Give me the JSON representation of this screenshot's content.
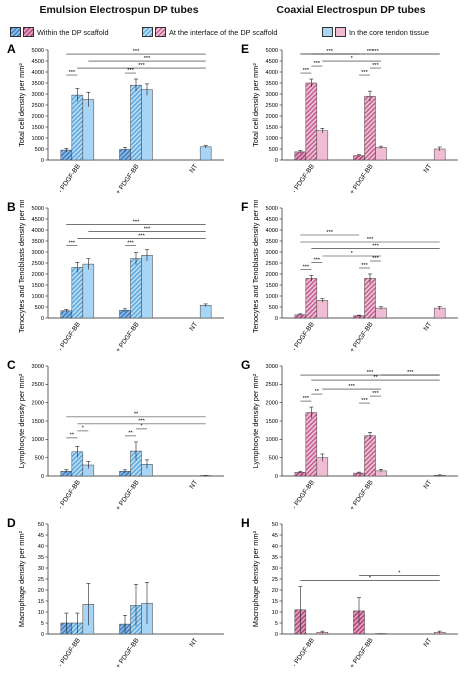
{
  "titles": {
    "left": "Emulsion Electrospun DP tubes",
    "right": "Coaxial Electrospun DP tubes"
  },
  "legend": [
    {
      "label": "Within the DP scaffold",
      "color": "#3b7fc4",
      "icon": "hatched-dark-swatch"
    },
    {
      "label": "At the interface of the DP scaffold",
      "color": "#c4608f",
      "icon": "hatched-mid-swatch"
    },
    {
      "label": "In the core tendon tissue",
      "color": "#a8d4f5",
      "icon": "light-swatch"
    }
  ],
  "chart_data": [
    {
      "panel": "A",
      "type": "bar",
      "ylabel": "Total cell density per mm²",
      "categories": [
        "- PDGF-BB",
        "+ PDGF-BB",
        "NT"
      ],
      "ylim": [
        0,
        5000
      ],
      "yticks": [
        0,
        500,
        1000,
        1500,
        2000,
        2500,
        3000,
        3500,
        4000,
        4500,
        5000
      ],
      "palette": "blue",
      "series": [
        {
          "name": "Within the DP scaffold",
          "values": [
            450,
            480,
            null
          ],
          "errors": [
            80,
            90,
            null
          ]
        },
        {
          "name": "At the interface of the DP scaffold",
          "values": [
            2950,
            3400,
            null
          ],
          "errors": [
            300,
            280,
            null
          ]
        },
        {
          "name": "In the core tendon tissue",
          "values": [
            2750,
            3200,
            600
          ],
          "errors": [
            330,
            260,
            60
          ]
        }
      ],
      "brackets": [
        "***",
        "***",
        "***",
        "***",
        "***"
      ]
    },
    {
      "panel": "B",
      "type": "bar",
      "ylabel": "Tenocytes and Tenoblasts density per mm²",
      "categories": [
        "- PDGF-BB",
        "+ PDGF-BB",
        "NT"
      ],
      "ylim": [
        0,
        5000
      ],
      "yticks": [
        0,
        500,
        1000,
        1500,
        2000,
        2500,
        3000,
        3500,
        4000,
        4500,
        5000
      ],
      "palette": "blue",
      "series": [
        {
          "name": "Within the DP scaffold",
          "values": [
            330,
            350,
            null
          ],
          "errors": [
            60,
            70,
            null
          ]
        },
        {
          "name": "At the interface of the DP scaffold",
          "values": [
            2300,
            2700,
            null
          ],
          "errors": [
            230,
            280,
            null
          ]
        },
        {
          "name": "In the core tendon tissue",
          "values": [
            2450,
            2850,
            580
          ],
          "errors": [
            250,
            260,
            60
          ]
        }
      ],
      "brackets": [
        "***",
        "***",
        "***",
        "***",
        "***"
      ]
    },
    {
      "panel": "C",
      "type": "bar",
      "ylabel": "Lymphocyte density per mm²",
      "categories": [
        "- PDGF-BB",
        "+ PDGF-BB",
        "NT"
      ],
      "ylim": [
        0,
        3000
      ],
      "yticks": [
        0,
        500,
        1000,
        1500,
        2000,
        2500,
        3000
      ],
      "palette": "blue",
      "series": [
        {
          "name": "Within the DP scaffold",
          "values": [
            130,
            130,
            null
          ],
          "errors": [
            40,
            40,
            null
          ]
        },
        {
          "name": "At the interface of the DP scaffold",
          "values": [
            660,
            680,
            null
          ],
          "errors": [
            150,
            250,
            null
          ]
        },
        {
          "name": "In the core tendon tissue",
          "values": [
            300,
            320,
            10
          ],
          "errors": [
            100,
            120,
            5
          ]
        }
      ],
      "brackets": [
        "**",
        "*",
        "**",
        "*",
        "***",
        "**"
      ]
    },
    {
      "panel": "D",
      "type": "bar",
      "ylabel": "Macrophage density per mm²",
      "categories": [
        "- PDGF-BB",
        "+ PDGF-BB",
        "NT"
      ],
      "ylim": [
        0,
        50
      ],
      "yticks": [
        0,
        5,
        10,
        15,
        20,
        25,
        30,
        35,
        40,
        45,
        50
      ],
      "palette": "blue",
      "series": [
        {
          "name": "Within the DP scaffold",
          "values": [
            5,
            4.5,
            null
          ],
          "errors": [
            4.5,
            4,
            null
          ]
        },
        {
          "name": "At the interface of the DP scaffold",
          "values": [
            5,
            13,
            null
          ],
          "errors": [
            4.5,
            9.5,
            null
          ]
        },
        {
          "name": "In the core tendon tissue",
          "values": [
            13.5,
            14,
            null
          ],
          "errors": [
            9.5,
            9.5,
            null
          ]
        }
      ],
      "brackets": []
    },
    {
      "panel": "E",
      "type": "bar",
      "ylabel": "Total cell density per mm²",
      "categories": [
        "- PDGF-BB",
        "+ PDGF-BB",
        "NT"
      ],
      "ylim": [
        0,
        5000
      ],
      "yticks": [
        0,
        500,
        1000,
        1500,
        2000,
        2500,
        3000,
        3500,
        4000,
        4500,
        5000
      ],
      "palette": "pink",
      "series": [
        {
          "name": "Within the DP scaffold",
          "values": [
            370,
            200,
            null
          ],
          "errors": [
            60,
            40,
            null
          ]
        },
        {
          "name": "At the interface of the DP scaffold",
          "values": [
            3500,
            2900,
            null
          ],
          "errors": [
            180,
            230,
            null
          ]
        },
        {
          "name": "In the core tendon tissue",
          "values": [
            1330,
            570,
            500
          ],
          "errors": [
            110,
            60,
            90
          ]
        }
      ],
      "brackets": [
        "***",
        "***",
        "***",
        "***",
        "*",
        "***",
        "***",
        "***"
      ]
    },
    {
      "panel": "F",
      "type": "bar",
      "ylabel": "Tenocytes and Tenoblasts density per mm²",
      "categories": [
        "- PDGF-BB",
        "+ PDGF-BB",
        "NT"
      ],
      "ylim": [
        0,
        5000
      ],
      "yticks": [
        0,
        500,
        1000,
        1500,
        2000,
        2500,
        3000,
        3500,
        4000,
        4500,
        5000
      ],
      "palette": "pink",
      "series": [
        {
          "name": "Within the DP scaffold",
          "values": [
            150,
            100,
            null
          ],
          "errors": [
            40,
            30,
            null
          ]
        },
        {
          "name": "At the interface of the DP scaffold",
          "values": [
            1800,
            1800,
            null
          ],
          "errors": [
            130,
            200,
            null
          ]
        },
        {
          "name": "In the core tendon tissue",
          "values": [
            800,
            450,
            450
          ],
          "errors": [
            80,
            60,
            80
          ]
        }
      ],
      "brackets": [
        "***",
        "***",
        "***",
        "***",
        "*",
        "***",
        "***",
        "***"
      ]
    },
    {
      "panel": "G",
      "type": "bar",
      "ylabel": "Lymphocyte density per mm²",
      "categories": [
        "- PDGF-BB",
        "+ PDGF-BB",
        "NT"
      ],
      "ylim": [
        0,
        3000
      ],
      "yticks": [
        0,
        500,
        1000,
        1500,
        2000,
        2500,
        3000
      ],
      "palette": "pink",
      "series": [
        {
          "name": "Within the DP scaffold",
          "values": [
            100,
            80,
            null
          ],
          "errors": [
            30,
            25,
            null
          ]
        },
        {
          "name": "At the interface of the DP scaffold",
          "values": [
            1730,
            1100,
            null
          ],
          "errors": [
            150,
            90,
            null
          ]
        },
        {
          "name": "In the core tendon tissue",
          "values": [
            500,
            140,
            20
          ],
          "errors": [
            100,
            40,
            10
          ]
        }
      ],
      "brackets": [
        "***",
        "**",
        "***",
        "***",
        "***",
        "**",
        "***",
        "***"
      ]
    },
    {
      "panel": "H",
      "type": "bar",
      "ylabel": "Macrophage density per mm²",
      "categories": [
        "- PDGF-BB",
        "+ PDGF-BB",
        "NT"
      ],
      "ylim": [
        0,
        50
      ],
      "yticks": [
        0,
        5,
        10,
        15,
        20,
        25,
        30,
        35,
        40,
        45,
        50
      ],
      "palette": "pink",
      "series": [
        {
          "name": "Within the DP scaffold",
          "values": [
            11,
            10.5,
            null
          ],
          "errors": [
            10.5,
            6,
            null
          ]
        },
        {
          "name": "At the interface of the DP scaffold",
          "values": [
            null,
            null,
            null
          ],
          "errors": [
            null,
            null,
            null
          ]
        },
        {
          "name": "In the core tendon tissue",
          "values": [
            0.8,
            0,
            0.8
          ],
          "errors": [
            0.5,
            0,
            0.5
          ]
        }
      ],
      "brackets": [
        "*",
        "*"
      ]
    }
  ]
}
